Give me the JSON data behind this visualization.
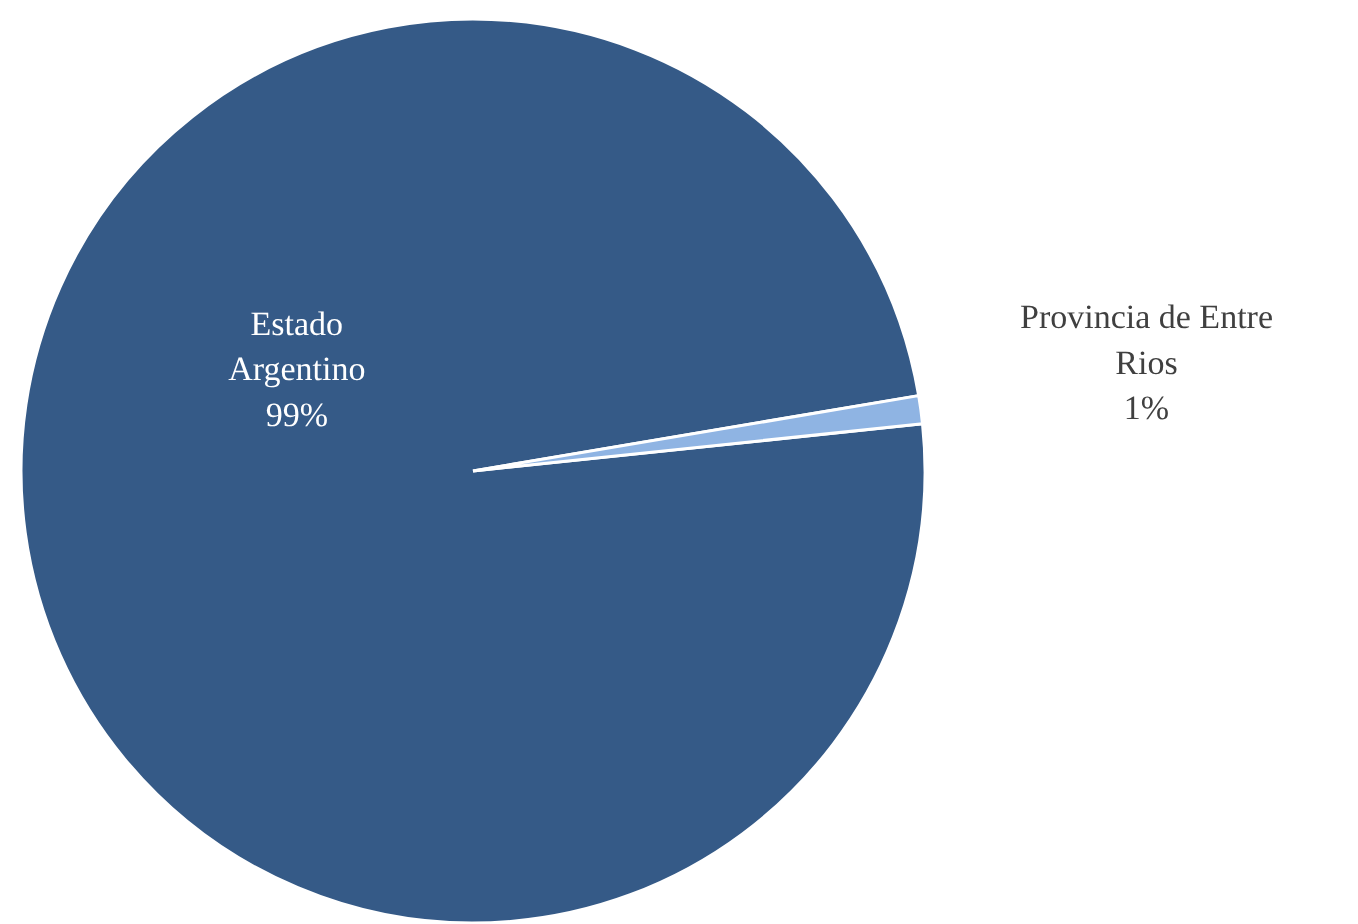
{
  "chart_data": {
    "type": "pie",
    "categories": [
      "Estado Argentino",
      "Provincia de Entre Rios"
    ],
    "values": [
      99,
      1
    ],
    "colors": [
      "#355a87",
      "#8fb4e3"
    ],
    "value_labels": [
      "99%",
      "1%"
    ]
  }
}
